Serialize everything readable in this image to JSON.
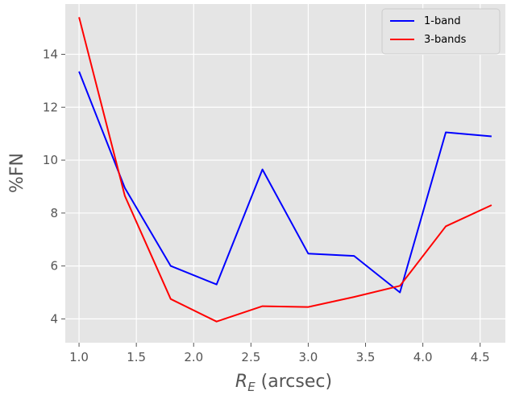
{
  "chart_data": {
    "type": "line",
    "xlabel_base": "R",
    "xlabel_sub": "E",
    "xlabel_rest": " (arcsec)",
    "ylabel": "%FN",
    "xlim": [
      0.88,
      4.72
    ],
    "ylim": [
      3.1,
      15.9
    ],
    "x_ticks": [
      1.0,
      1.5,
      2.0,
      2.5,
      3.0,
      3.5,
      4.0,
      4.5
    ],
    "x_tick_labels": [
      "1.0",
      "1.5",
      "2.0",
      "2.5",
      "3.0",
      "3.5",
      "4.0",
      "4.5"
    ],
    "y_ticks": [
      4,
      6,
      8,
      10,
      12,
      14
    ],
    "y_tick_labels": [
      "4",
      "6",
      "8",
      "10",
      "12",
      "14"
    ],
    "grid": true,
    "legend_position": "top-right",
    "x": [
      1.0,
      1.4,
      1.8,
      2.2,
      2.6,
      3.0,
      3.4,
      3.8,
      4.2,
      4.6
    ],
    "series": [
      {
        "name": "1-band",
        "color": "#0000ff",
        "values": [
          13.35,
          8.95,
          6.0,
          5.3,
          9.65,
          6.47,
          6.38,
          5.0,
          11.05,
          10.9
        ]
      },
      {
        "name": "3-bands",
        "color": "#ff0000",
        "values": [
          15.4,
          8.65,
          4.75,
          3.9,
          4.48,
          4.45,
          4.83,
          5.25,
          7.5,
          8.3
        ]
      }
    ]
  }
}
